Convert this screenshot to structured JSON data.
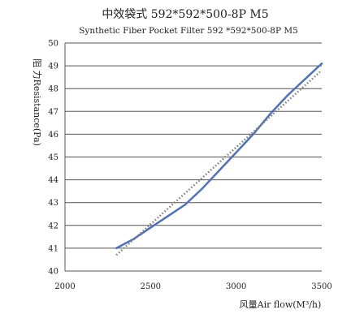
{
  "chart_data": {
    "type": "line",
    "title": "中效袋式 592*592*500-8P M5",
    "subtitle": "Synthetic Fiber Pocket Filter 592  *592*500-8P M5",
    "xlabel": "风量Air flow(M³/h)",
    "ylabel": "阻 力Resistance(Pa)",
    "xlim": [
      2000,
      3500
    ],
    "ylim": [
      40,
      50
    ],
    "xticks": [
      2000,
      2500,
      3000,
      3500
    ],
    "yticks": [
      40,
      41,
      42,
      43,
      44,
      45,
      46,
      47,
      48,
      49,
      50
    ],
    "grid": "horizontal",
    "legend": "none",
    "series": [
      {
        "style": "solid",
        "color": "#4f72b8",
        "points": [
          [
            2300,
            41.0
          ],
          [
            2400,
            41.4
          ],
          [
            2500,
            41.9
          ],
          [
            2600,
            42.4
          ],
          [
            2700,
            42.9
          ],
          [
            2800,
            43.6
          ],
          [
            2900,
            44.4
          ],
          [
            3000,
            45.2
          ],
          [
            3100,
            46.0
          ],
          [
            3200,
            46.9
          ],
          [
            3300,
            47.7
          ],
          [
            3400,
            48.4
          ],
          [
            3500,
            49.1
          ]
        ]
      },
      {
        "style": "dotted",
        "color": "#7f7f7f",
        "points": [
          [
            2300,
            40.7
          ],
          [
            3500,
            48.8
          ]
        ]
      }
    ]
  }
}
